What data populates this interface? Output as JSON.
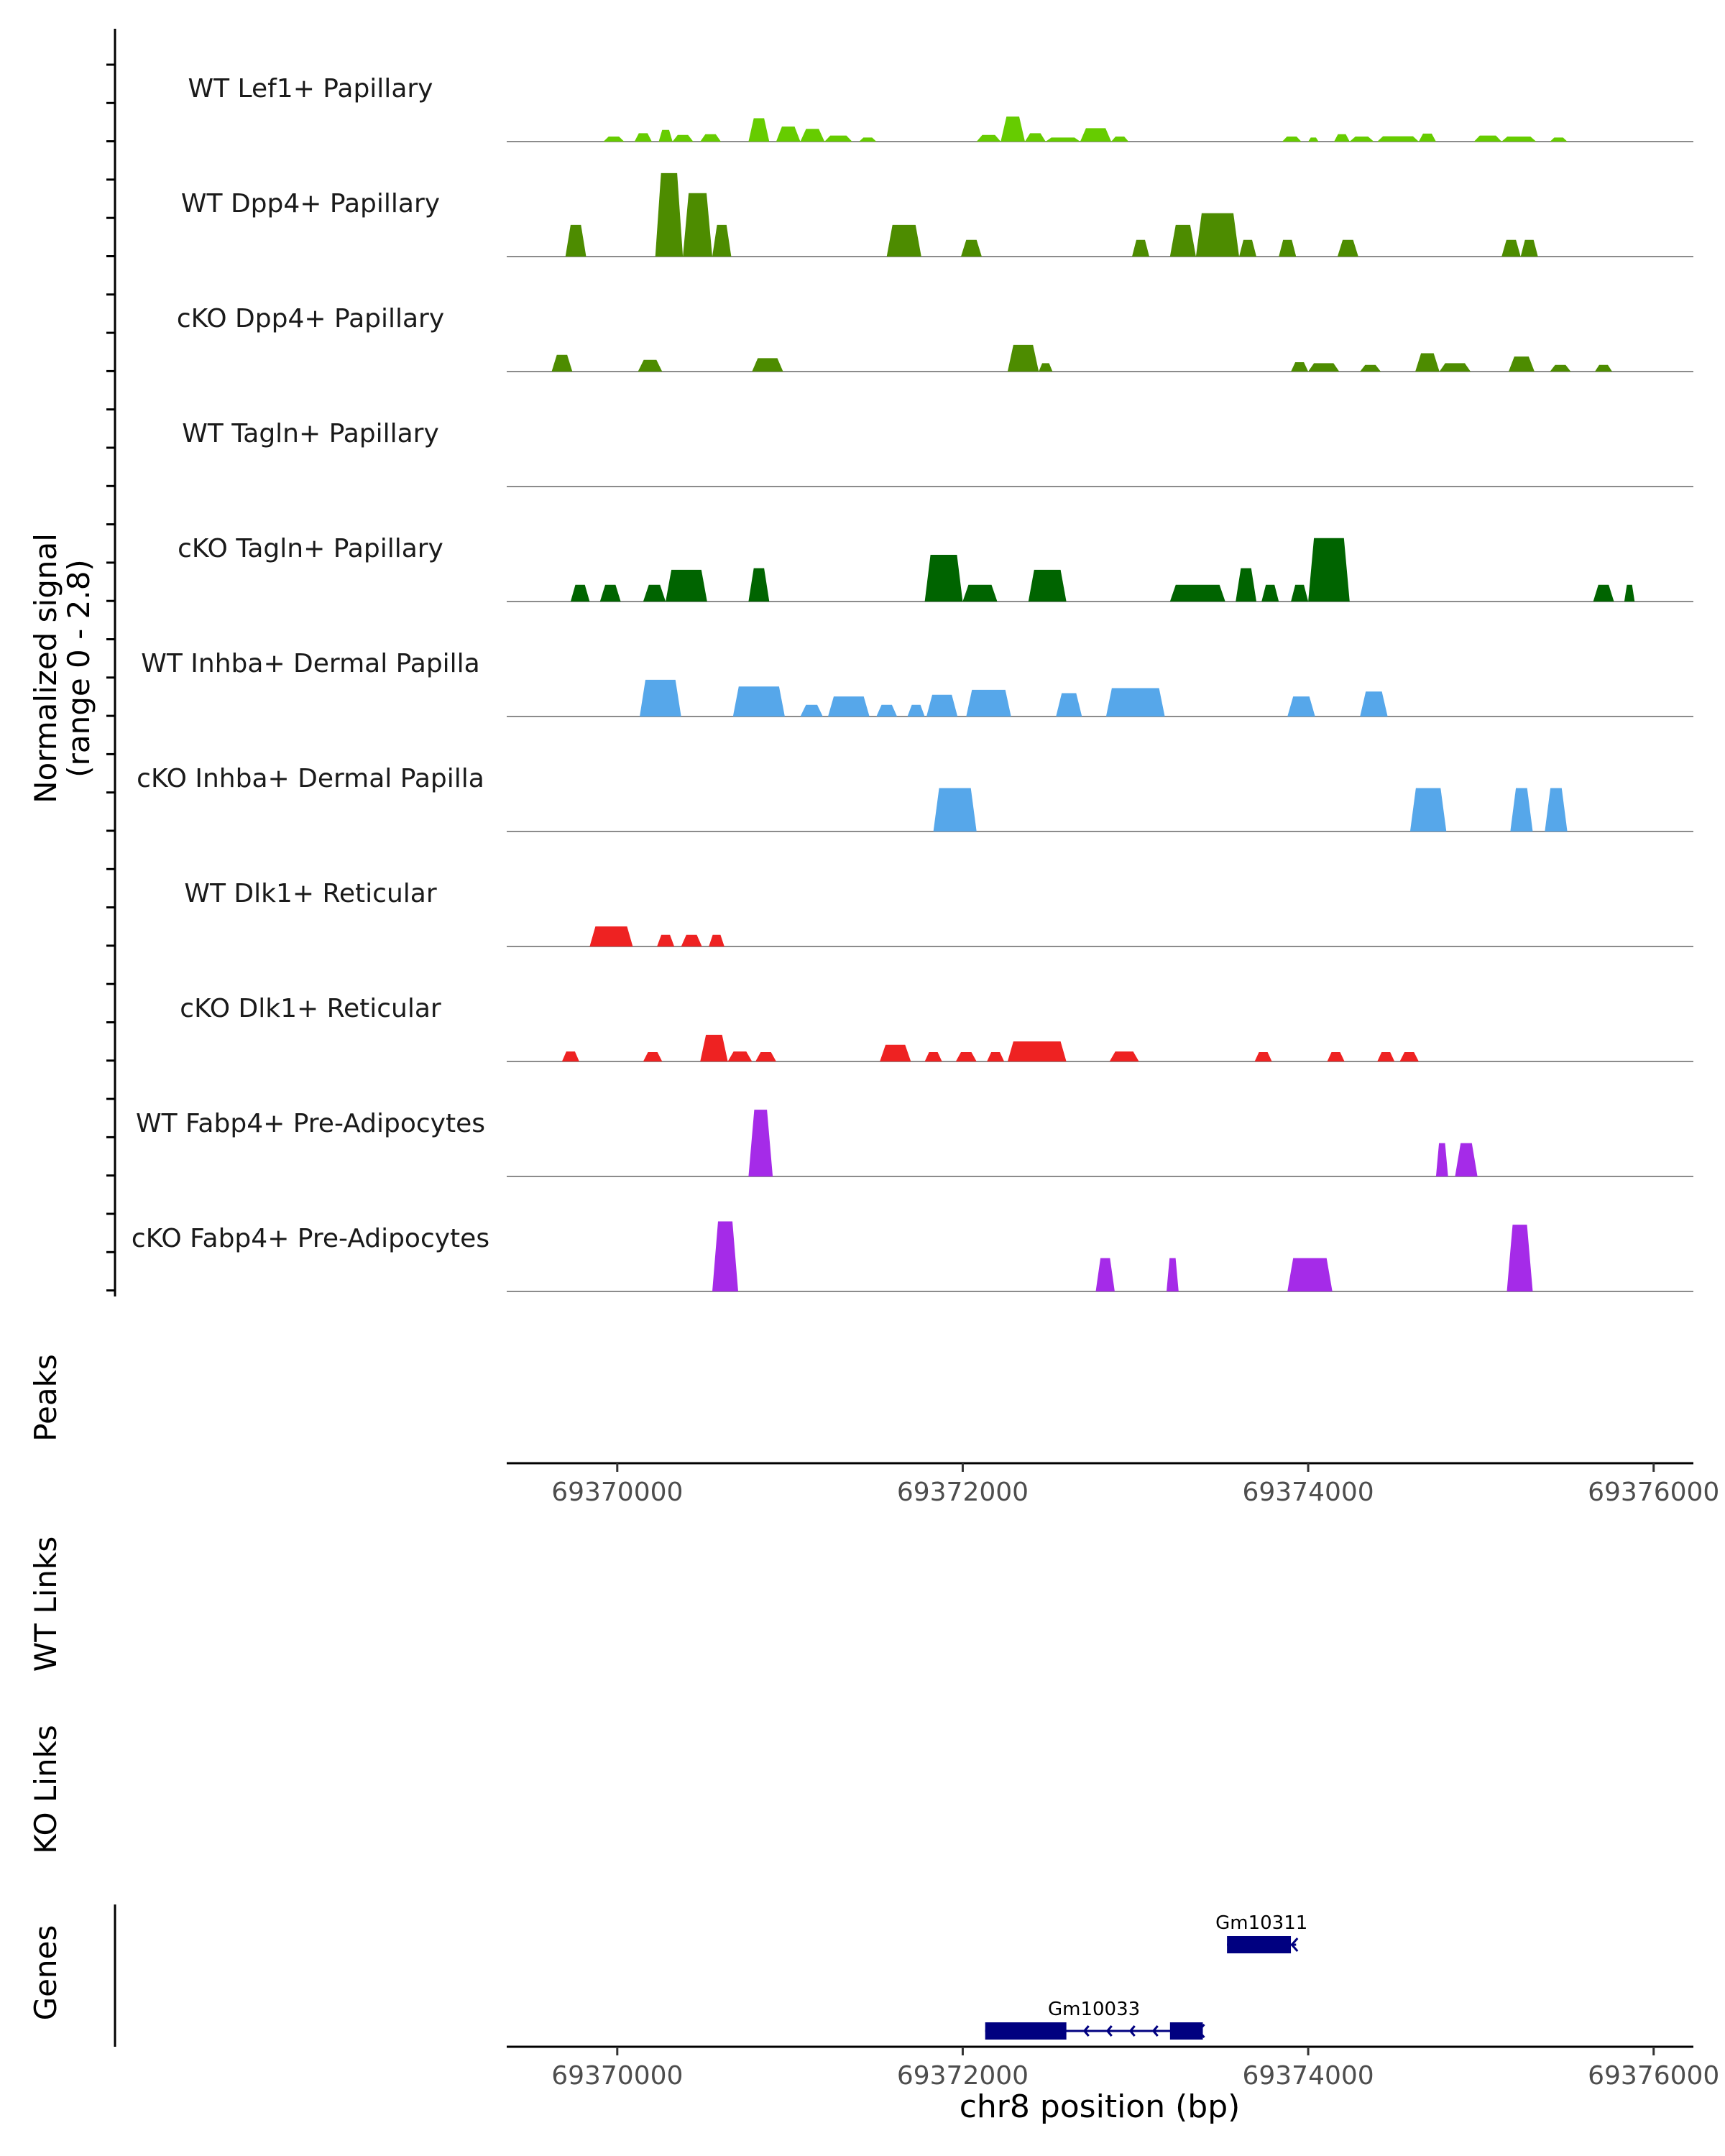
{
  "chart_data": {
    "type": "area",
    "ylabel_line1": "Normalized signal",
    "ylabel_line2": "(range 0 - 2.8)",
    "ylim": [
      0,
      2.8
    ],
    "xlim": [
      69369360,
      69376230
    ],
    "xlabel": "chr8 position (bp)",
    "xticks": [
      69370000,
      69372000,
      69374000,
      69376000
    ],
    "xtick_labels": [
      "69370000",
      "69372000",
      "69374000",
      "69376000"
    ],
    "tracks": [
      {
        "name": "WT Lef1+ Papillary",
        "color": "#66CC00",
        "segments": [
          [
            69369920,
            69370040,
            0.15
          ],
          [
            69370100,
            69370200,
            0.25
          ],
          [
            69370240,
            69370320,
            0.35
          ],
          [
            69370320,
            69370440,
            0.2
          ],
          [
            69370480,
            69370600,
            0.22
          ],
          [
            69370760,
            69370880,
            0.7
          ],
          [
            69370920,
            69371060,
            0.45
          ],
          [
            69371060,
            69371200,
            0.38
          ],
          [
            69371200,
            69371360,
            0.18
          ],
          [
            69371400,
            69371500,
            0.12
          ],
          [
            69372080,
            69372220,
            0.2
          ],
          [
            69372220,
            69372360,
            0.75
          ],
          [
            69372360,
            69372480,
            0.25
          ],
          [
            69372480,
            69372680,
            0.12
          ],
          [
            69372680,
            69372860,
            0.4
          ],
          [
            69372860,
            69372960,
            0.15
          ],
          [
            69373850,
            69373960,
            0.15
          ],
          [
            69374000,
            69374060,
            0.12
          ],
          [
            69374150,
            69374240,
            0.22
          ],
          [
            69374240,
            69374380,
            0.15
          ],
          [
            69374400,
            69374640,
            0.16
          ],
          [
            69374640,
            69374740,
            0.24
          ],
          [
            69374960,
            69375120,
            0.18
          ],
          [
            69375120,
            69375320,
            0.15
          ],
          [
            69375400,
            69375500,
            0.12
          ]
        ]
      },
      {
        "name": "WT Dpp4+ Papillary",
        "color": "#4D8C00",
        "segments": [
          [
            69369700,
            69369820,
            0.95
          ],
          [
            69370220,
            69370380,
            2.5
          ],
          [
            69370380,
            69370550,
            1.9
          ],
          [
            69370550,
            69370660,
            0.95
          ],
          [
            69371560,
            69371760,
            0.95
          ],
          [
            69371990,
            69372110,
            0.5
          ],
          [
            69372980,
            69373080,
            0.5
          ],
          [
            69373200,
            69373350,
            0.95
          ],
          [
            69373350,
            69373600,
            1.3
          ],
          [
            69373600,
            69373700,
            0.5
          ],
          [
            69373830,
            69373930,
            0.5
          ],
          [
            69374170,
            69374290,
            0.5
          ],
          [
            69375120,
            69375230,
            0.5
          ],
          [
            69375230,
            69375330,
            0.5
          ]
        ]
      },
      {
        "name": "cKO Dpp4+ Papillary",
        "color": "#4D8C00",
        "segments": [
          [
            69369620,
            69369740,
            0.5
          ],
          [
            69370120,
            69370260,
            0.35
          ],
          [
            69370780,
            69370960,
            0.4
          ],
          [
            69372260,
            69372440,
            0.8
          ],
          [
            69372440,
            69372520,
            0.25
          ],
          [
            69373900,
            69374000,
            0.28
          ],
          [
            69374000,
            69374180,
            0.25
          ],
          [
            69374300,
            69374420,
            0.2
          ],
          [
            69374620,
            69374760,
            0.55
          ],
          [
            69374760,
            69374940,
            0.25
          ],
          [
            69375160,
            69375310,
            0.45
          ],
          [
            69375400,
            69375520,
            0.2
          ],
          [
            69375660,
            69375760,
            0.2
          ]
        ]
      },
      {
        "name": "WT Tagln+ Papillary",
        "color": "#006400",
        "segments": []
      },
      {
        "name": "cKO Tagln+ Papillary",
        "color": "#006400",
        "segments": [
          [
            69369730,
            69369840,
            0.5
          ],
          [
            69369900,
            69370020,
            0.5
          ],
          [
            69370150,
            69370280,
            0.5
          ],
          [
            69370280,
            69370520,
            0.95
          ],
          [
            69370760,
            69370880,
            1.0
          ],
          [
            69371780,
            69372000,
            1.4
          ],
          [
            69372000,
            69372200,
            0.5
          ],
          [
            69372380,
            69372600,
            0.95
          ],
          [
            69373200,
            69373520,
            0.5
          ],
          [
            69373580,
            69373700,
            1.0
          ],
          [
            69373730,
            69373830,
            0.5
          ],
          [
            69373900,
            69374000,
            0.5
          ],
          [
            69374000,
            69374240,
            1.9
          ],
          [
            69375650,
            69375770,
            0.5
          ],
          [
            69375830,
            69375890,
            0.5
          ]
        ]
      },
      {
        "name": "WT Inhba+ Dermal Papilla",
        "color": "#56A7EA",
        "segments": [
          [
            69370130,
            69370370,
            1.1
          ],
          [
            69370670,
            69370970,
            0.9
          ],
          [
            69371060,
            69371190,
            0.35
          ],
          [
            69371220,
            69371460,
            0.6
          ],
          [
            69371500,
            69371620,
            0.35
          ],
          [
            69371680,
            69371780,
            0.35
          ],
          [
            69371790,
            69371970,
            0.65
          ],
          [
            69372020,
            69372280,
            0.8
          ],
          [
            69372540,
            69372690,
            0.7
          ],
          [
            69372830,
            69373170,
            0.85
          ],
          [
            69373880,
            69374040,
            0.6
          ],
          [
            69374300,
            69374460,
            0.75
          ]
        ]
      },
      {
        "name": "cKO Inhba+ Dermal Papilla",
        "color": "#56A7EA",
        "segments": [
          [
            69371830,
            69372080,
            1.3
          ],
          [
            69374590,
            69374800,
            1.3
          ],
          [
            69375170,
            69375300,
            1.3
          ],
          [
            69375370,
            69375500,
            1.3
          ]
        ]
      },
      {
        "name": "WT Dlk1+ Reticular",
        "color": "#EE2222",
        "segments": [
          [
            69369840,
            69370090,
            0.6
          ],
          [
            69370230,
            69370330,
            0.35
          ],
          [
            69370370,
            69370490,
            0.35
          ],
          [
            69370530,
            69370620,
            0.35
          ]
        ]
      },
      {
        "name": "cKO Dlk1+ Reticular",
        "color": "#EE2222",
        "segments": [
          [
            69369680,
            69369780,
            0.3
          ],
          [
            69370150,
            69370260,
            0.28
          ],
          [
            69370480,
            69370640,
            0.8
          ],
          [
            69370640,
            69370780,
            0.3
          ],
          [
            69370800,
            69370920,
            0.28
          ],
          [
            69371520,
            69371700,
            0.5
          ],
          [
            69371780,
            69371880,
            0.28
          ],
          [
            69371960,
            69372080,
            0.28
          ],
          [
            69372140,
            69372240,
            0.28
          ],
          [
            69372260,
            69372600,
            0.6
          ],
          [
            69372850,
            69373020,
            0.3
          ],
          [
            69373690,
            69373790,
            0.28
          ],
          [
            69374110,
            69374210,
            0.28
          ],
          [
            69374400,
            69374500,
            0.28
          ],
          [
            69374530,
            69374640,
            0.28
          ]
        ]
      },
      {
        "name": "WT Fabp4+ Pre-Adipocytes",
        "color": "#A52BE8",
        "segments": [
          [
            69370760,
            69370900,
            2.0
          ],
          [
            69374740,
            69374810,
            1.0
          ],
          [
            69374850,
            69374980,
            1.0
          ]
        ]
      },
      {
        "name": "cKO Fabp4+ Pre-Adipocytes",
        "color": "#A52BE8",
        "segments": [
          [
            69370550,
            69370700,
            2.1
          ],
          [
            69372770,
            69372880,
            1.0
          ],
          [
            69373180,
            69373250,
            1.0
          ],
          [
            69373880,
            69374140,
            1.0
          ],
          [
            69375150,
            69375300,
            2.0
          ]
        ]
      }
    ],
    "panels": {
      "peaks": "Peaks",
      "wt_links": "WT Links",
      "ko_links": "KO Links",
      "genes": "Genes"
    },
    "genes": [
      {
        "name": "Gm10311",
        "start": 69373530,
        "end": 69373930,
        "strand": "-",
        "row": 1,
        "exons": [
          [
            69373530,
            69373900
          ]
        ]
      },
      {
        "name": "Gm10033",
        "start": 69372130,
        "end": 69373390,
        "strand": "-",
        "row": 2,
        "exons": [
          [
            69372130,
            69372600
          ],
          [
            69373200,
            69373390
          ]
        ]
      }
    ],
    "gene_color": "#000080"
  }
}
